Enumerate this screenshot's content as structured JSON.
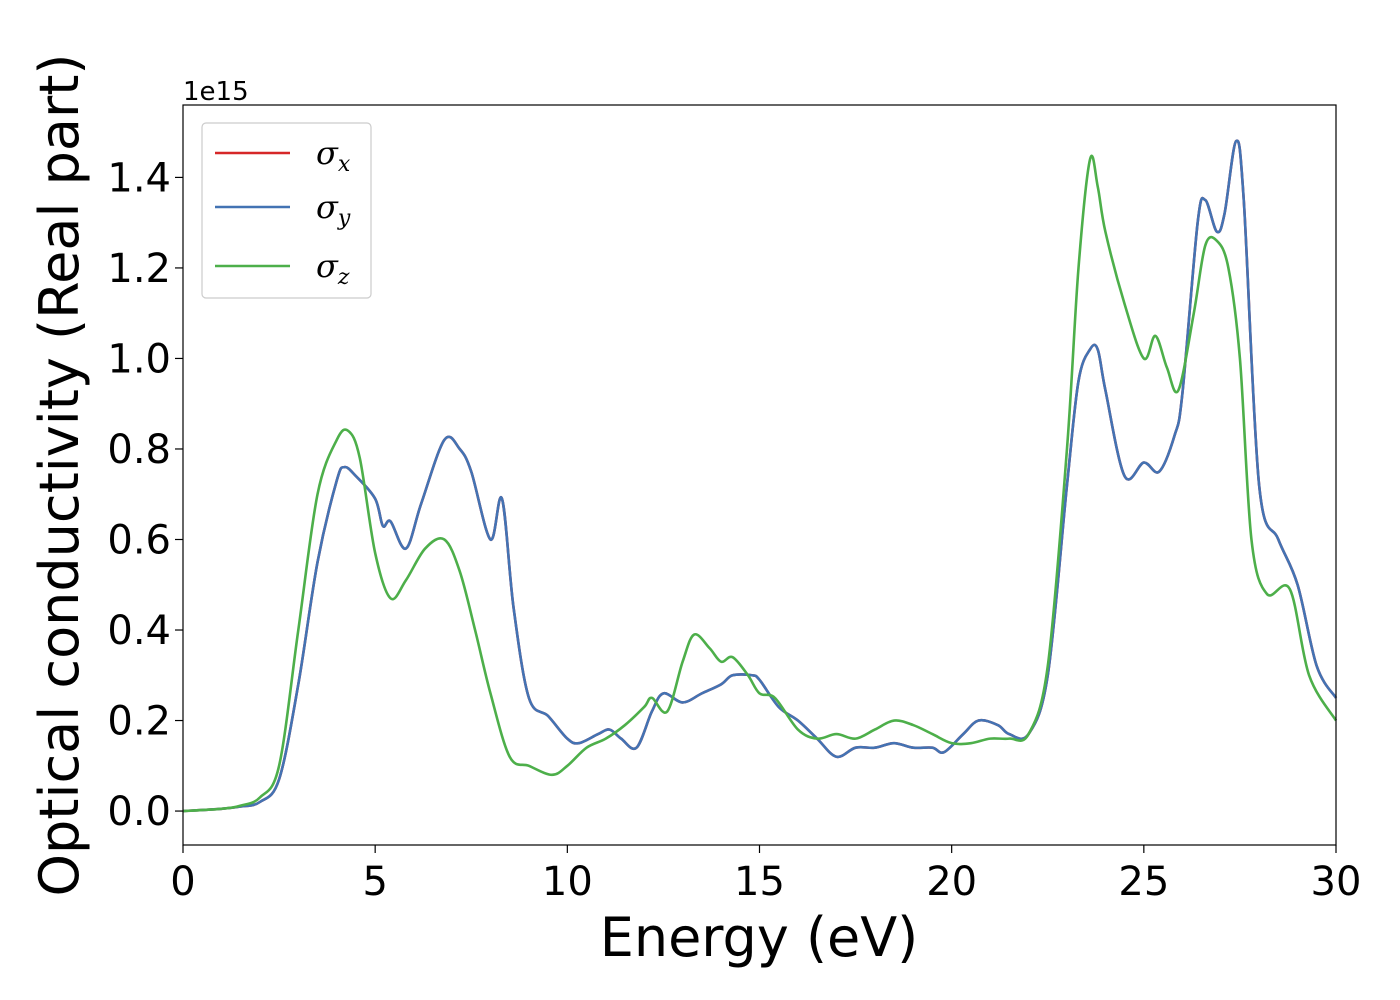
{
  "chart_data": {
    "type": "line",
    "xlabel": "Energy (eV)",
    "ylabel": "Optical conductivity (Real part)",
    "y_offset_text": "1e15",
    "xlim": [
      0,
      30
    ],
    "ylim": [
      -0.075,
      1.56
    ],
    "x_ticks": [
      0,
      5,
      10,
      15,
      20,
      25,
      30
    ],
    "x_tick_labels": [
      "0",
      "5",
      "10",
      "15",
      "20",
      "25",
      "30"
    ],
    "y_ticks": [
      0.0,
      0.2,
      0.4,
      0.6,
      0.8,
      1.0,
      1.2,
      1.4
    ],
    "y_tick_labels": [
      "0.0",
      "0.2",
      "0.4",
      "0.6",
      "0.8",
      "1.0",
      "1.2",
      "1.4"
    ],
    "grid": false,
    "legend_position": "top-left",
    "series": [
      {
        "name": "σ",
        "subscript": "x",
        "color": "#d62728",
        "x": [
          0,
          1,
          1.5,
          2,
          2.5,
          3,
          3.5,
          4,
          4.2,
          4.5,
          5,
          5.2,
          5.4,
          5.8,
          6.2,
          6.8,
          7.2,
          7.5,
          8,
          8.3,
          8.6,
          9,
          9.5,
          10,
          10.3,
          10.8,
          11.1,
          11.4,
          11.8,
          12.2,
          12.5,
          13,
          13.5,
          14,
          14.3,
          14.8,
          15,
          15.5,
          16,
          16.5,
          17,
          17.5,
          18,
          18.5,
          19,
          19.5,
          19.8,
          20.3,
          20.7,
          21.2,
          21.5,
          22,
          22.5,
          23,
          23.3,
          23.6,
          23.8,
          24,
          24.5,
          25,
          25.4,
          25.8,
          26,
          26.4,
          26.6,
          26.9,
          27.1,
          27.4,
          27.6,
          28,
          28.5,
          29,
          29.5,
          30
        ],
        "values": [
          0,
          0.005,
          0.01,
          0.02,
          0.07,
          0.28,
          0.55,
          0.73,
          0.76,
          0.74,
          0.69,
          0.63,
          0.64,
          0.58,
          0.68,
          0.82,
          0.8,
          0.75,
          0.6,
          0.69,
          0.45,
          0.25,
          0.21,
          0.16,
          0.15,
          0.17,
          0.18,
          0.16,
          0.14,
          0.22,
          0.26,
          0.24,
          0.26,
          0.28,
          0.3,
          0.3,
          0.29,
          0.23,
          0.2,
          0.16,
          0.12,
          0.14,
          0.14,
          0.15,
          0.14,
          0.14,
          0.13,
          0.17,
          0.2,
          0.19,
          0.17,
          0.17,
          0.3,
          0.72,
          0.95,
          1.02,
          1.02,
          0.93,
          0.74,
          0.77,
          0.75,
          0.83,
          0.92,
          1.3,
          1.35,
          1.28,
          1.32,
          1.48,
          1.35,
          0.72,
          0.6,
          0.5,
          0.32,
          0.25
        ]
      },
      {
        "name": "σ",
        "subscript": "y",
        "color": "#4373b3",
        "x": [
          0,
          1,
          1.5,
          2,
          2.5,
          3,
          3.5,
          4,
          4.2,
          4.5,
          5,
          5.2,
          5.4,
          5.8,
          6.2,
          6.8,
          7.2,
          7.5,
          8,
          8.3,
          8.6,
          9,
          9.5,
          10,
          10.3,
          10.8,
          11.1,
          11.4,
          11.8,
          12.2,
          12.5,
          13,
          13.5,
          14,
          14.3,
          14.8,
          15,
          15.5,
          16,
          16.5,
          17,
          17.5,
          18,
          18.5,
          19,
          19.5,
          19.8,
          20.3,
          20.7,
          21.2,
          21.5,
          22,
          22.5,
          23,
          23.3,
          23.6,
          23.8,
          24,
          24.5,
          25,
          25.4,
          25.8,
          26,
          26.4,
          26.6,
          26.9,
          27.1,
          27.4,
          27.6,
          28,
          28.5,
          29,
          29.5,
          30
        ],
        "values": [
          0,
          0.005,
          0.01,
          0.02,
          0.07,
          0.28,
          0.55,
          0.73,
          0.76,
          0.74,
          0.69,
          0.63,
          0.64,
          0.58,
          0.68,
          0.82,
          0.8,
          0.75,
          0.6,
          0.69,
          0.45,
          0.25,
          0.21,
          0.16,
          0.15,
          0.17,
          0.18,
          0.16,
          0.14,
          0.22,
          0.26,
          0.24,
          0.26,
          0.28,
          0.3,
          0.3,
          0.29,
          0.23,
          0.2,
          0.16,
          0.12,
          0.14,
          0.14,
          0.15,
          0.14,
          0.14,
          0.13,
          0.17,
          0.2,
          0.19,
          0.17,
          0.17,
          0.3,
          0.72,
          0.95,
          1.02,
          1.02,
          0.93,
          0.74,
          0.77,
          0.75,
          0.83,
          0.92,
          1.3,
          1.35,
          1.28,
          1.32,
          1.48,
          1.35,
          0.72,
          0.6,
          0.5,
          0.32,
          0.25
        ]
      },
      {
        "name": "σ",
        "subscript": "z",
        "color": "#4daf4a",
        "x": [
          0,
          1,
          1.5,
          2,
          2.5,
          3,
          3.5,
          4,
          4.3,
          4.6,
          5,
          5.4,
          5.8,
          6.3,
          6.8,
          7.2,
          7.6,
          8,
          8.5,
          9,
          9.6,
          10,
          10.5,
          11,
          11.5,
          12,
          12.2,
          12.6,
          13,
          13.3,
          13.7,
          14,
          14.3,
          14.7,
          15,
          15.4,
          16,
          16.5,
          17,
          17.5,
          18,
          18.5,
          19,
          19.5,
          20,
          20.5,
          21,
          21.5,
          22,
          22.5,
          23,
          23.3,
          23.6,
          23.8,
          24,
          24.5,
          25,
          25.3,
          25.6,
          25.9,
          26.3,
          26.6,
          26.9,
          27.2,
          27.5,
          27.8,
          28.2,
          28.8,
          29.3,
          30
        ],
        "values": [
          0,
          0.005,
          0.012,
          0.03,
          0.1,
          0.4,
          0.7,
          0.82,
          0.84,
          0.78,
          0.57,
          0.47,
          0.51,
          0.58,
          0.6,
          0.53,
          0.4,
          0.26,
          0.12,
          0.1,
          0.08,
          0.1,
          0.14,
          0.16,
          0.19,
          0.23,
          0.25,
          0.22,
          0.33,
          0.39,
          0.36,
          0.33,
          0.34,
          0.3,
          0.26,
          0.25,
          0.18,
          0.16,
          0.17,
          0.16,
          0.18,
          0.2,
          0.19,
          0.17,
          0.15,
          0.15,
          0.16,
          0.16,
          0.17,
          0.32,
          0.8,
          1.2,
          1.44,
          1.38,
          1.28,
          1.12,
          1.0,
          1.05,
          0.98,
          0.93,
          1.1,
          1.25,
          1.26,
          1.2,
          1.0,
          0.6,
          0.48,
          0.49,
          0.3,
          0.2
        ]
      }
    ]
  }
}
